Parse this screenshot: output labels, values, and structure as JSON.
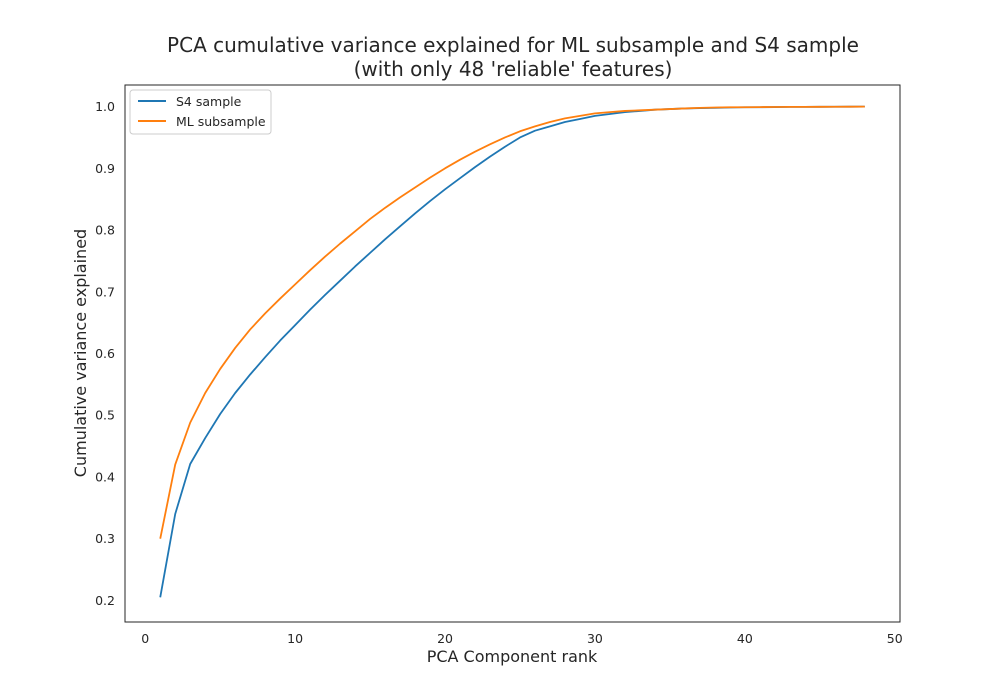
{
  "chart_data": {
    "type": "line",
    "title": "PCA cumulative variance explained for ML subsample and S4 sample",
    "subtitle": "(with only 48 'reliable' features)",
    "xlabel": "PCA Component rank",
    "ylabel": "Cumulative variance explained",
    "xlim": [
      -1.35,
      50.35
    ],
    "ylim": [
      0.165,
      1.035
    ],
    "xticks": [
      0,
      10,
      20,
      30,
      40,
      50
    ],
    "yticks": [
      0.2,
      0.3,
      0.4,
      0.5,
      0.6,
      0.7,
      0.8,
      0.9,
      1.0
    ],
    "xtick_labels": [
      "0",
      "10",
      "20",
      "30",
      "40",
      "50"
    ],
    "ytick_labels": [
      "0.2",
      "0.3",
      "0.4",
      "0.5",
      "0.6",
      "0.7",
      "0.8",
      "0.9",
      "1.0"
    ],
    "grid": false,
    "legend_position": "upper left",
    "x": [
      1,
      2,
      3,
      4,
      5,
      6,
      7,
      8,
      9,
      10,
      11,
      12,
      13,
      14,
      15,
      16,
      17,
      18,
      19,
      20,
      21,
      22,
      23,
      24,
      25,
      26,
      27,
      28,
      29,
      30,
      31,
      32,
      33,
      34,
      35,
      36,
      37,
      38,
      39,
      40,
      41,
      42,
      43,
      44,
      45,
      46,
      47,
      48
    ],
    "series": [
      {
        "name": "S4 sample",
        "color": "#1f77b4",
        "values": [
          0.205,
          0.34,
          0.421,
          0.463,
          0.502,
          0.536,
          0.566,
          0.594,
          0.621,
          0.646,
          0.671,
          0.695,
          0.718,
          0.741,
          0.763,
          0.785,
          0.806,
          0.827,
          0.847,
          0.866,
          0.884,
          0.902,
          0.919,
          0.935,
          0.95,
          0.961,
          0.968,
          0.975,
          0.98,
          0.985,
          0.988,
          0.991,
          0.993,
          0.995,
          0.996,
          0.997,
          0.9975,
          0.998,
          0.9985,
          0.999,
          0.999,
          0.9993,
          0.9995,
          0.9996,
          0.9997,
          0.9998,
          0.9999,
          1.0
        ]
      },
      {
        "name": "ML subsample",
        "color": "#ff7f0e",
        "values": [
          0.3,
          0.42,
          0.488,
          0.536,
          0.575,
          0.609,
          0.639,
          0.665,
          0.689,
          0.712,
          0.735,
          0.757,
          0.778,
          0.798,
          0.818,
          0.836,
          0.853,
          0.869,
          0.885,
          0.9,
          0.914,
          0.927,
          0.939,
          0.95,
          0.96,
          0.968,
          0.975,
          0.981,
          0.985,
          0.989,
          0.991,
          0.993,
          0.994,
          0.995,
          0.996,
          0.997,
          0.998,
          0.9985,
          0.999,
          0.999,
          0.9992,
          0.9994,
          0.9995,
          0.9996,
          0.9997,
          0.9998,
          0.9999,
          1.0
        ]
      }
    ]
  }
}
